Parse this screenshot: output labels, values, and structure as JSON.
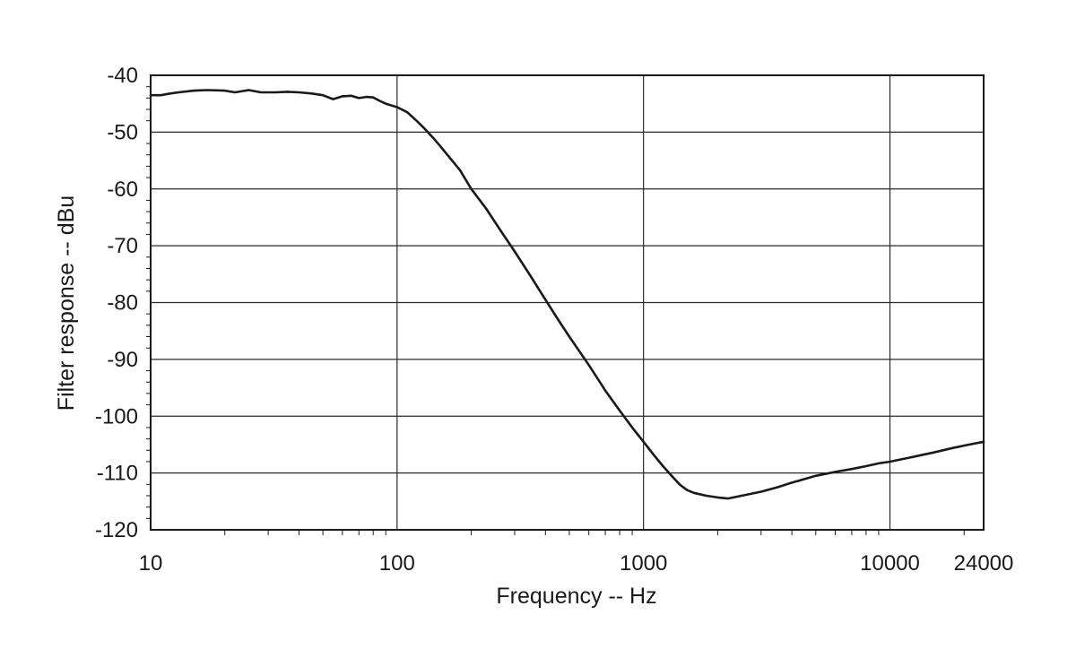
{
  "chart_data": {
    "type": "line",
    "xlabel": "Frequency -- Hz",
    "ylabel": "Filter response -- dBu",
    "x_scale": "log",
    "xlim": [
      10,
      24000
    ],
    "ylim": [
      -120,
      -40
    ],
    "x_ticks": [
      10,
      100,
      1000,
      10000,
      24000
    ],
    "x_tick_labels": [
      "10",
      "100",
      "1000",
      "10000",
      "24000"
    ],
    "y_ticks": [
      -40,
      -50,
      -60,
      -70,
      -80,
      -90,
      -100,
      -110,
      -120
    ],
    "y_tick_labels": [
      "-40",
      "-50",
      "-60",
      "-70",
      "-80",
      "-90",
      "-100",
      "-110",
      "-120"
    ],
    "grid": true,
    "colors": {
      "line": "#1a1a1a",
      "grid": "#2a2a2a",
      "frame": "#1a1a1a",
      "background": "#ffffff"
    },
    "series": [
      {
        "x": [
          10,
          11,
          12,
          13,
          15,
          17,
          20,
          22,
          25,
          28,
          32,
          36,
          40,
          45,
          50,
          55,
          60,
          65,
          70,
          75,
          80,
          85,
          90,
          100,
          110,
          120,
          130,
          140,
          150,
          160,
          180,
          200,
          230,
          260,
          300,
          350,
          400,
          450,
          500,
          600,
          700,
          800,
          900,
          1000,
          1100,
          1200,
          1300,
          1400,
          1500,
          1600,
          1800,
          2000,
          2200,
          2500,
          3000,
          3500,
          4000,
          5000,
          6000,
          7000,
          8000,
          9000,
          10000,
          12000,
          15000,
          18000,
          21000,
          24000
        ],
        "y": [
          -43.5,
          -43.5,
          -43.2,
          -43.0,
          -42.7,
          -42.6,
          -42.7,
          -43.0,
          -42.6,
          -43.0,
          -43.0,
          -42.9,
          -43.0,
          -43.2,
          -43.5,
          -44.2,
          -43.7,
          -43.6,
          -44.0,
          -43.8,
          -43.9,
          -44.5,
          -45.0,
          -45.6,
          -46.5,
          -48.0,
          -49.5,
          -51.0,
          -52.5,
          -54.0,
          -56.7,
          -60.0,
          -63.5,
          -67.0,
          -71.0,
          -75.5,
          -79.5,
          -83.0,
          -86.0,
          -91.0,
          -95.5,
          -99.0,
          -102.0,
          -104.5,
          -106.8,
          -108.8,
          -110.5,
          -112.0,
          -113.0,
          -113.5,
          -114.0,
          -114.3,
          -114.5,
          -114.0,
          -113.3,
          -112.5,
          -111.7,
          -110.5,
          -109.8,
          -109.3,
          -108.8,
          -108.3,
          -108.0,
          -107.3,
          -106.4,
          -105.6,
          -105.0,
          -104.5
        ]
      }
    ]
  }
}
